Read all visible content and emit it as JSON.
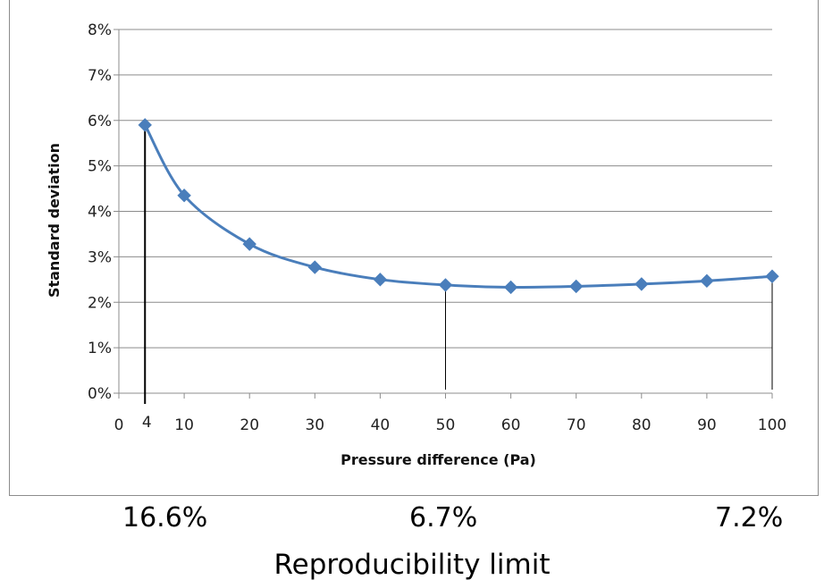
{
  "chart_data": {
    "type": "line",
    "xlabel": "Pressure difference (Pa)",
    "ylabel": "Standard deviation",
    "xlim": [
      0,
      100
    ],
    "ylim": [
      0,
      8
    ],
    "x_ticks": [
      "0",
      "10",
      "20",
      "30",
      "40",
      "50",
      "60",
      "70",
      "80",
      "90",
      "100"
    ],
    "x_extra_tick": {
      "value": 4,
      "label": "4"
    },
    "y_ticks": [
      "0%",
      "1%",
      "2%",
      "3%",
      "4%",
      "5%",
      "6%",
      "7%",
      "8%"
    ],
    "grid": "horizontal",
    "series": [
      {
        "color": "#4a7ebb",
        "marker": "diamond",
        "x": [
          4,
          10,
          20,
          30,
          40,
          50,
          60,
          70,
          80,
          90,
          100
        ],
        "y": [
          5.9,
          4.35,
          3.28,
          2.77,
          2.5,
          2.38,
          2.33,
          2.35,
          2.4,
          2.47,
          2.57
        ]
      }
    ],
    "vertical_markers": [
      4,
      50,
      100
    ]
  },
  "reproducibility": {
    "values": [
      "16.6%",
      "6.7%",
      "7.2%"
    ],
    "label": "Reproducibility limit"
  }
}
